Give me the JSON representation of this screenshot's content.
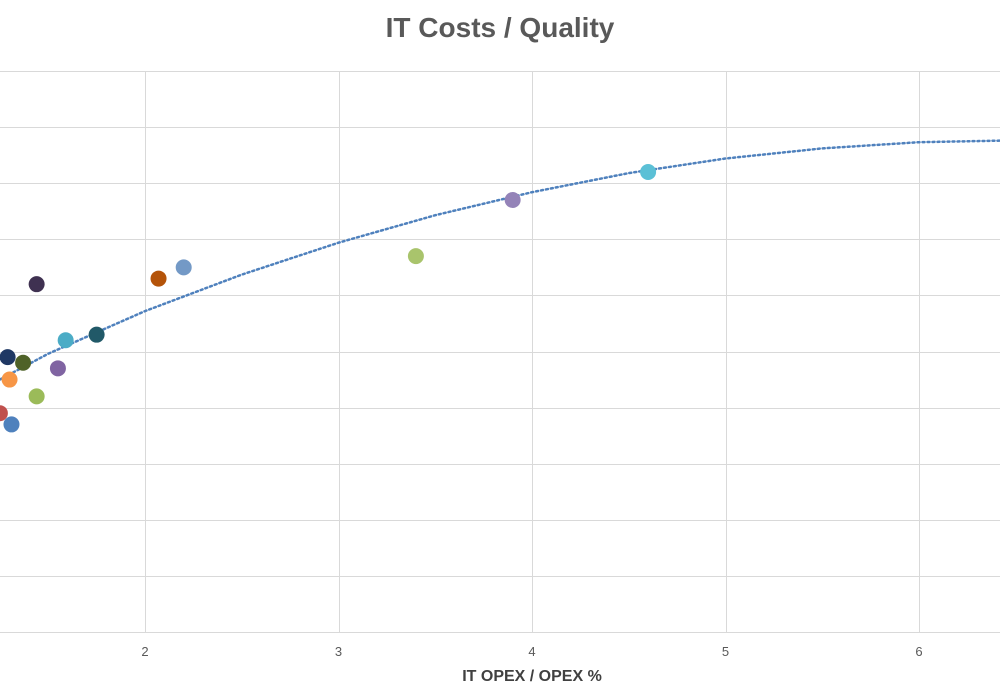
{
  "chart_data": {
    "type": "scatter",
    "title": "IT Costs / Quality",
    "xlabel": "IT OPEX / OPEX %",
    "ylabel": "",
    "xlim": [
      1.25,
      6.43
    ],
    "ylim": [
      0,
      100
    ],
    "x_ticks": [
      "2",
      "3",
      "4",
      "5",
      "6"
    ],
    "y_gridlines": [
      0,
      10,
      20,
      30,
      40,
      50,
      60,
      70,
      80,
      90,
      100
    ],
    "grid": true,
    "legend": "none",
    "points": [
      {
        "x": 1.25,
        "y": 39,
        "color": "#c0504d"
      },
      {
        "x": 1.31,
        "y": 37,
        "color": "#4f81bd"
      },
      {
        "x": 1.29,
        "y": 49,
        "color": "#1f3864"
      },
      {
        "x": 1.3,
        "y": 45,
        "color": "#f79646"
      },
      {
        "x": 1.37,
        "y": 48,
        "color": "#4f6228"
      },
      {
        "x": 1.44,
        "y": 42,
        "color": "#9bbb59"
      },
      {
        "x": 1.44,
        "y": 62,
        "color": "#3f3151"
      },
      {
        "x": 1.55,
        "y": 47,
        "color": "#8064a2"
      },
      {
        "x": 1.59,
        "y": 52,
        "color": "#4bacc6"
      },
      {
        "x": 1.75,
        "y": 53,
        "color": "#215968"
      },
      {
        "x": 2.07,
        "y": 63,
        "color": "#b45309"
      },
      {
        "x": 2.2,
        "y": 65,
        "color": "#7399c6"
      },
      {
        "x": 3.4,
        "y": 67,
        "color": "#a9c46c"
      },
      {
        "x": 3.9,
        "y": 77,
        "color": "#9483b8"
      },
      {
        "x": 4.6,
        "y": 82,
        "color": "#5bc0d6"
      }
    ],
    "trendline": {
      "style": "dotted",
      "color": "#4f81bd",
      "x": [
        1.25,
        1.5,
        2.0,
        2.5,
        3.0,
        3.5,
        4.0,
        4.5,
        5.0,
        5.5,
        6.0,
        6.43
      ],
      "y": [
        45,
        49.6,
        57.2,
        63.7,
        69.4,
        74.3,
        78.4,
        81.8,
        84.4,
        86.2,
        87.3,
        87.6
      ]
    }
  }
}
